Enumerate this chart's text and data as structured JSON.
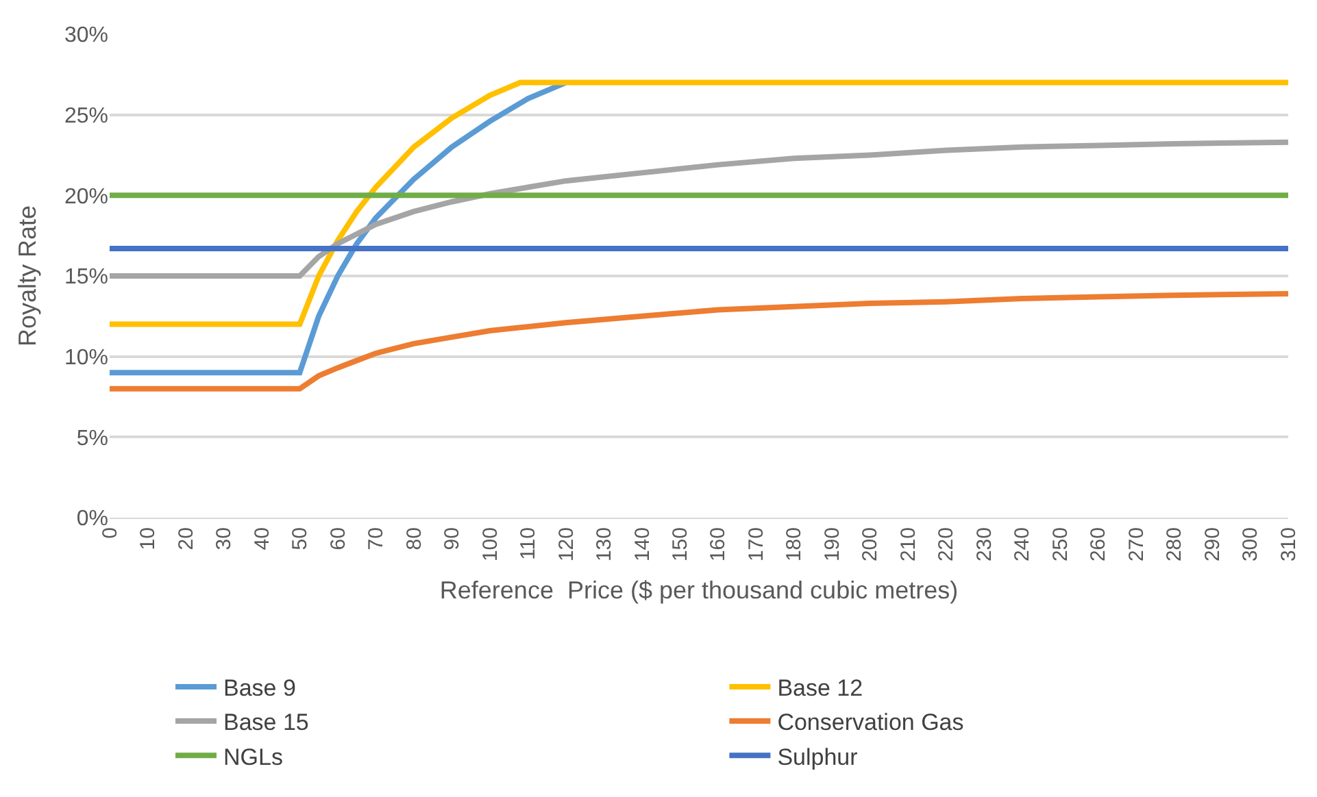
{
  "chart_data": {
    "type": "line",
    "xlabel": "Reference  Price ($ per thousand cubic metres)",
    "ylabel": "Royalty Rate",
    "xlim": [
      0,
      310
    ],
    "xticks": [
      0,
      10,
      20,
      30,
      40,
      50,
      60,
      70,
      80,
      90,
      100,
      110,
      120,
      130,
      140,
      150,
      160,
      170,
      180,
      190,
      200,
      210,
      220,
      230,
      240,
      250,
      260,
      270,
      280,
      290,
      300,
      310
    ],
    "ylim": [
      0,
      30
    ],
    "yticks": [
      {
        "value": 0,
        "label": "0%"
      },
      {
        "value": 5,
        "label": "5%"
      },
      {
        "value": 10,
        "label": "10%"
      },
      {
        "value": 15,
        "label": "15%"
      },
      {
        "value": 20,
        "label": "20%"
      },
      {
        "value": 25,
        "label": "25%"
      },
      {
        "value": 30,
        "label": "30%"
      }
    ],
    "grid": "y",
    "legend": "bottom",
    "line_style": "solid",
    "marker": "none",
    "series": [
      {
        "name": "Base 9",
        "color": "#5b9bd5",
        "x": [
          0,
          50,
          55,
          60,
          65,
          70,
          80,
          90,
          100,
          110,
          120
        ],
        "values": [
          9,
          9,
          12.5,
          15,
          17,
          18.6,
          21,
          23,
          24.6,
          26,
          27
        ]
      },
      {
        "name": "Base 12",
        "color": "#ffc000",
        "x": [
          0,
          50,
          55,
          60,
          65,
          70,
          80,
          90,
          100,
          108,
          310
        ],
        "values": [
          12,
          12,
          15,
          17.2,
          19,
          20.5,
          23,
          24.8,
          26.2,
          27,
          27
        ]
      },
      {
        "name": "Base 15",
        "color": "#a5a5a5",
        "x": [
          0,
          50,
          55,
          60,
          70,
          80,
          90,
          100,
          110,
          120,
          140,
          160,
          180,
          200,
          220,
          240,
          260,
          280,
          310
        ],
        "values": [
          15,
          15,
          16.2,
          17,
          18.2,
          19,
          19.6,
          20.1,
          20.5,
          20.9,
          21.4,
          21.9,
          22.3,
          22.5,
          22.8,
          23,
          23.1,
          23.2,
          23.3
        ]
      },
      {
        "name": "Conservation Gas",
        "color": "#ed7d31",
        "x": [
          0,
          50,
          55,
          60,
          70,
          80,
          90,
          100,
          120,
          140,
          160,
          180,
          200,
          220,
          240,
          260,
          280,
          310
        ],
        "values": [
          8,
          8,
          8.8,
          9.3,
          10.2,
          10.8,
          11.2,
          11.6,
          12.1,
          12.5,
          12.9,
          13.1,
          13.3,
          13.4,
          13.6,
          13.7,
          13.8,
          13.9
        ]
      },
      {
        "name": "NGLs",
        "color": "#70ad47",
        "x": [
          0,
          310
        ],
        "values": [
          20,
          20
        ]
      },
      {
        "name": "Sulphur",
        "color": "#4472c4",
        "x": [
          0,
          310
        ],
        "values": [
          16.7,
          16.7
        ]
      }
    ]
  }
}
